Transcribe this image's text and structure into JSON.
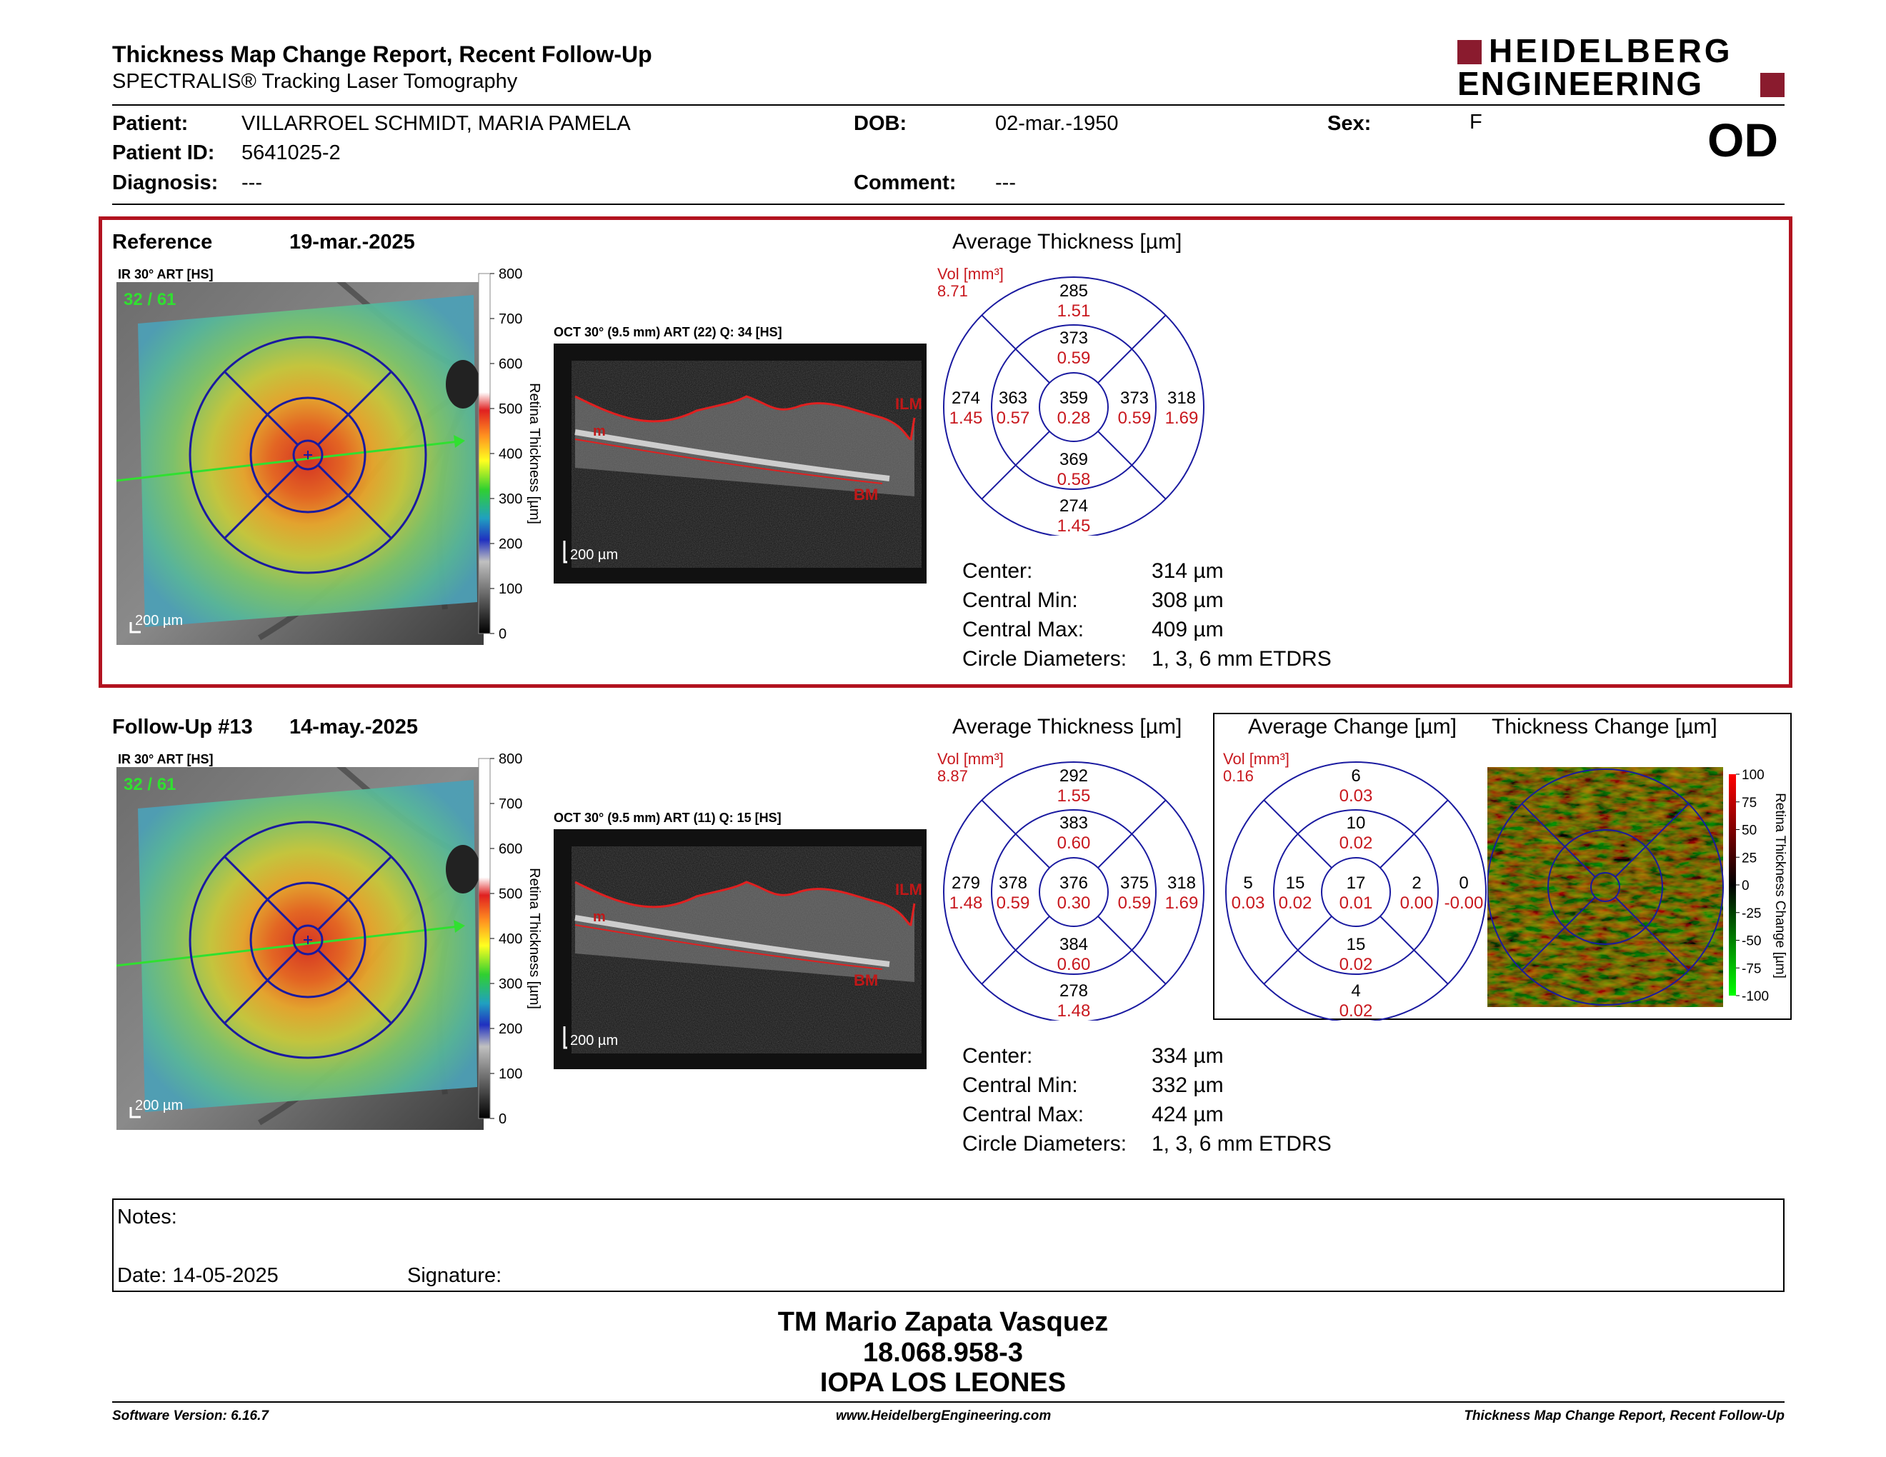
{
  "header": {
    "title": "Thickness Map Change Report, Recent Follow-Up",
    "subtitle": "SPECTRALIS® Tracking Laser Tomography",
    "logo_line1": "HEIDELBERG",
    "logo_line2": "ENGINEERING",
    "eye": "OD"
  },
  "patient": {
    "patient_label": "Patient:",
    "patient_value": "VILLARROEL SCHMIDT, MARIA PAMELA",
    "id_label": "Patient ID:",
    "id_value": "5641025-2",
    "diag_label": "Diagnosis:",
    "diag_value": "---",
    "dob_label": "DOB:",
    "dob_value": "02-mar.-1950",
    "comment_label": "Comment:",
    "comment_value": "---",
    "sex_label": "Sex:",
    "sex_value": "F"
  },
  "reference": {
    "label": "Reference",
    "date": "19-mar.-2025",
    "ir_label": "IR 30° ART [HS]",
    "ir_counter": "32 / 61",
    "oct_label": "OCT 30° (9.5 mm) ART (22) Q: 34 [HS]",
    "scale_ir": "200 µm",
    "scale_oct": "200 µm",
    "colorbar_ticks": [
      "800",
      "700",
      "600",
      "500",
      "400",
      "300",
      "200",
      "100",
      "0"
    ],
    "colorbar_title": "Retina Thickness [µm]",
    "layer_ilm": "ILM",
    "layer_rpe": "m",
    "layer_bm": "BM",
    "grid_title": "Average Thickness [µm]",
    "vol_label": "Vol [mm³]",
    "vol_value": "8.71",
    "grid": {
      "outer_top": [
        "285",
        "1.51"
      ],
      "inner_top": [
        "373",
        "0.59"
      ],
      "outer_left": [
        "274",
        "1.45"
      ],
      "inner_left": [
        "363",
        "0.57"
      ],
      "center": [
        "359",
        "0.28"
      ],
      "inner_right": [
        "373",
        "0.59"
      ],
      "outer_right": [
        "318",
        "1.69"
      ],
      "inner_bottom": [
        "369",
        "0.58"
      ],
      "outer_bottom": [
        "274",
        "1.45"
      ]
    },
    "stats": [
      {
        "label": "Center:",
        "value": "314 µm"
      },
      {
        "label": "Central Min:",
        "value": "308 µm"
      },
      {
        "label": "Central Max:",
        "value": "409 µm"
      },
      {
        "label": "Circle Diameters:",
        "value": "1, 3, 6 mm ETDRS"
      }
    ]
  },
  "followup": {
    "label": "Follow-Up #13",
    "date": "14-may.-2025",
    "ir_label": "IR 30° ART [HS]",
    "ir_counter": "32 / 61",
    "oct_label": "OCT 30° (9.5 mm) ART (11) Q: 15 [HS]",
    "scale_ir": "200 µm",
    "scale_oct": "200 µm",
    "colorbar_ticks": [
      "800",
      "700",
      "600",
      "500",
      "400",
      "300",
      "200",
      "100",
      "0"
    ],
    "colorbar_title": "Retina Thickness [µm]",
    "layer_ilm": "ILM",
    "layer_rpe": "m",
    "layer_bm": "BM",
    "grid_title": "Average Thickness [µm]",
    "vol_label": "Vol [mm³]",
    "vol_value": "8.87",
    "grid": {
      "outer_top": [
        "292",
        "1.55"
      ],
      "inner_top": [
        "383",
        "0.60"
      ],
      "outer_left": [
        "279",
        "1.48"
      ],
      "inner_left": [
        "378",
        "0.59"
      ],
      "center": [
        "376",
        "0.30"
      ],
      "inner_right": [
        "375",
        "0.59"
      ],
      "outer_right": [
        "318",
        "1.69"
      ],
      "inner_bottom": [
        "384",
        "0.60"
      ],
      "outer_bottom": [
        "278",
        "1.48"
      ]
    },
    "stats": [
      {
        "label": "Center:",
        "value": "334 µm"
      },
      {
        "label": "Central Min:",
        "value": "332 µm"
      },
      {
        "label": "Central Max:",
        "value": "424 µm"
      },
      {
        "label": "Circle Diameters:",
        "value": "1, 3, 6 mm ETDRS"
      }
    ]
  },
  "change": {
    "grid_title": "Average Change [µm]",
    "map_title": "Thickness Change [µm]",
    "vol_label": "Vol [mm³]",
    "vol_value": "0.16",
    "grid": {
      "outer_top": [
        "6",
        "0.03"
      ],
      "inner_top": [
        "10",
        "0.02"
      ],
      "outer_left": [
        "5",
        "0.03"
      ],
      "inner_left": [
        "15",
        "0.02"
      ],
      "center": [
        "17",
        "0.01"
      ],
      "inner_right": [
        "2",
        "0.00"
      ],
      "outer_right": [
        "0",
        "-0.00"
      ],
      "inner_bottom": [
        "15",
        "0.02"
      ],
      "outer_bottom": [
        "4",
        "0.02"
      ]
    },
    "colorbar_ticks": [
      "100",
      "75",
      "50",
      "25",
      "0",
      "-25",
      "-50",
      "-75",
      "-100"
    ],
    "colorbar_title": "Retina Thickness Change [µm]"
  },
  "notes": {
    "notes_label": "Notes:",
    "date_label": "Date: 14-05-2025",
    "signature_label": "Signature:"
  },
  "signature": {
    "name": "TM Mario Zapata Vasquez",
    "id": "18.068.958-3",
    "org": "IOPA LOS LEONES"
  },
  "footer": {
    "software": "Software Version: 6.16.7",
    "website": "www.HeidelbergEngineering.com",
    "report": "Thickness Map Change Report, Recent Follow-Up"
  },
  "colors": {
    "accent_red": "#b2121f",
    "grid_blue": "#1a1aa0",
    "vol_red": "#c8181e"
  }
}
